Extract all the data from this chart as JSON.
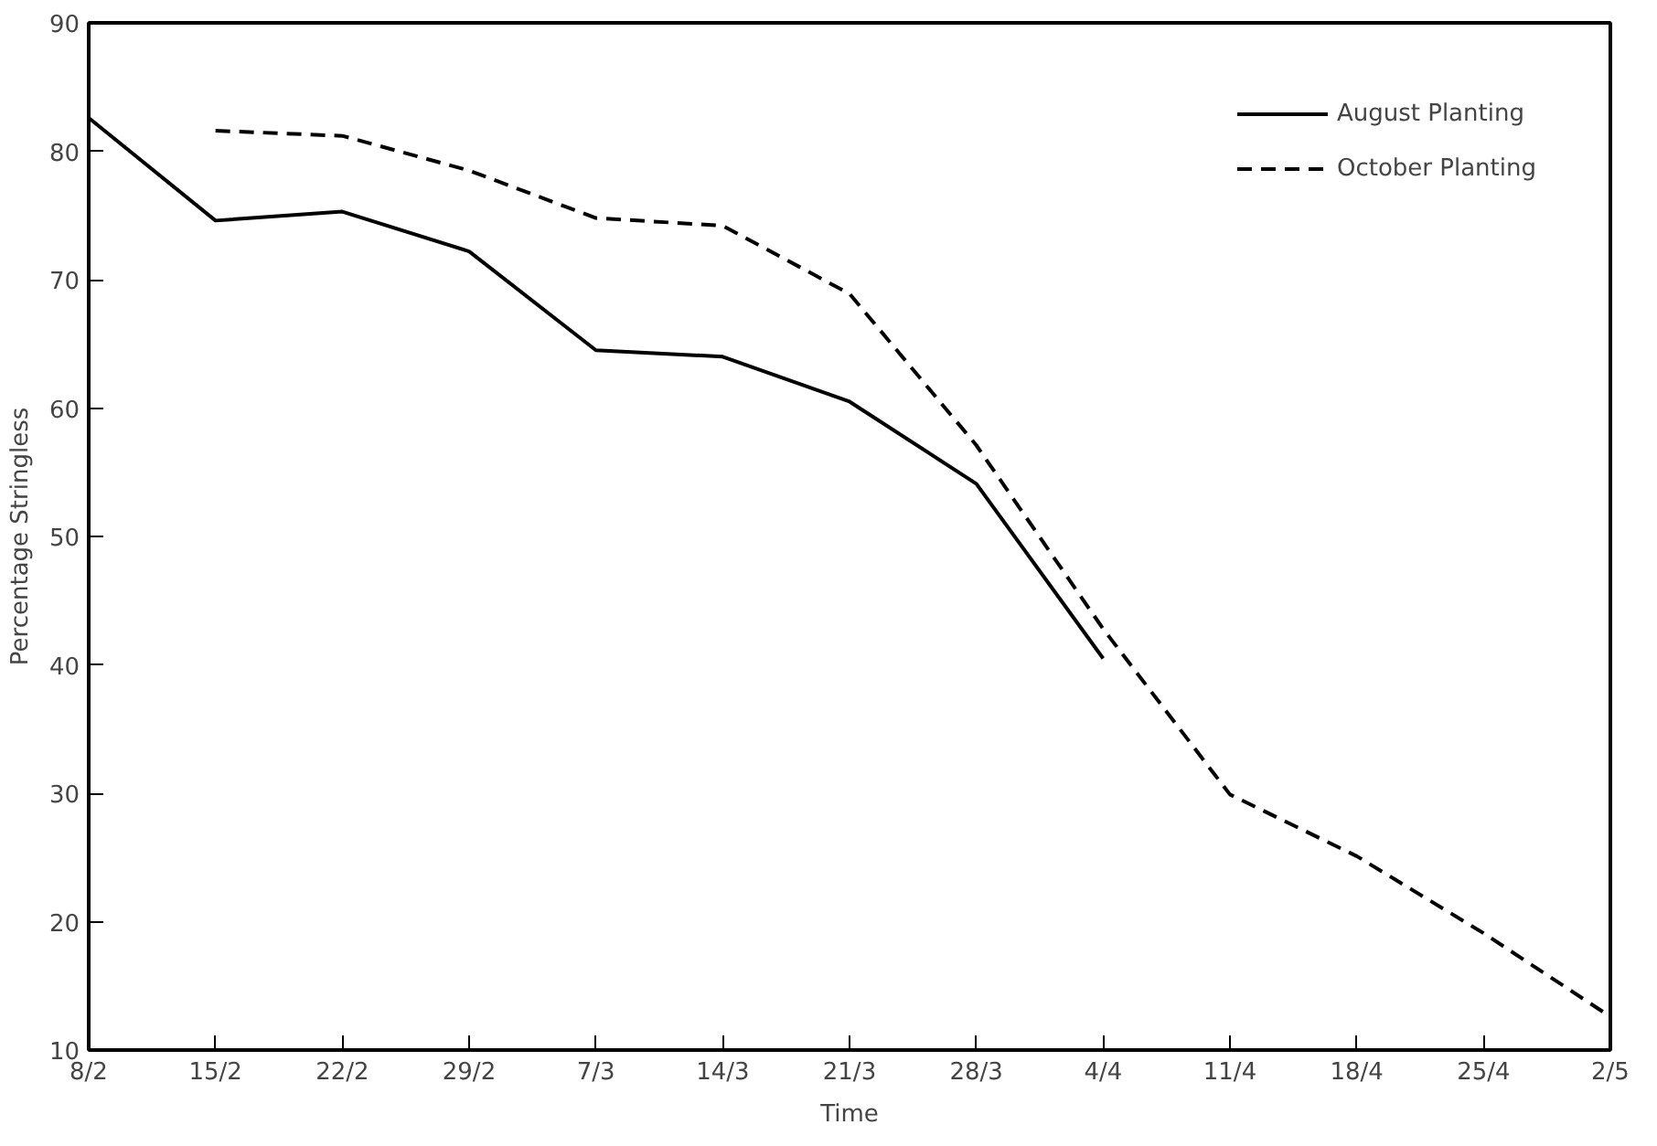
{
  "chart_data": {
    "type": "line",
    "xlabel": "Time",
    "ylabel": "Percentage Stringless",
    "categories": [
      "8/2",
      "15/2",
      "22/2",
      "29/2",
      "7/3",
      "14/3",
      "21/3",
      "28/3",
      "4/4",
      "11/4",
      "18/4",
      "25/4",
      "2/5"
    ],
    "series": [
      {
        "name": "August Planting",
        "color": "#000000",
        "line_style": "solid",
        "values": [
          82.6,
          74.6,
          75.3,
          72.2,
          64.5,
          64.0,
          60.5,
          54.1,
          40.5,
          null,
          null,
          null,
          null
        ]
      },
      {
        "name": "October Planting",
        "color": "#000000",
        "line_style": "dashed",
        "values": [
          null,
          81.6,
          81.2,
          78.5,
          74.8,
          74.2,
          68.9,
          57.1,
          42.8,
          29.9,
          25.1,
          19.1,
          12.6
        ]
      }
    ],
    "ylim": [
      10,
      90
    ],
    "yticks": [
      10,
      20,
      30,
      40,
      50,
      60,
      70,
      80,
      90
    ],
    "grid": false,
    "legend": "top right",
    "marker": "none"
  }
}
